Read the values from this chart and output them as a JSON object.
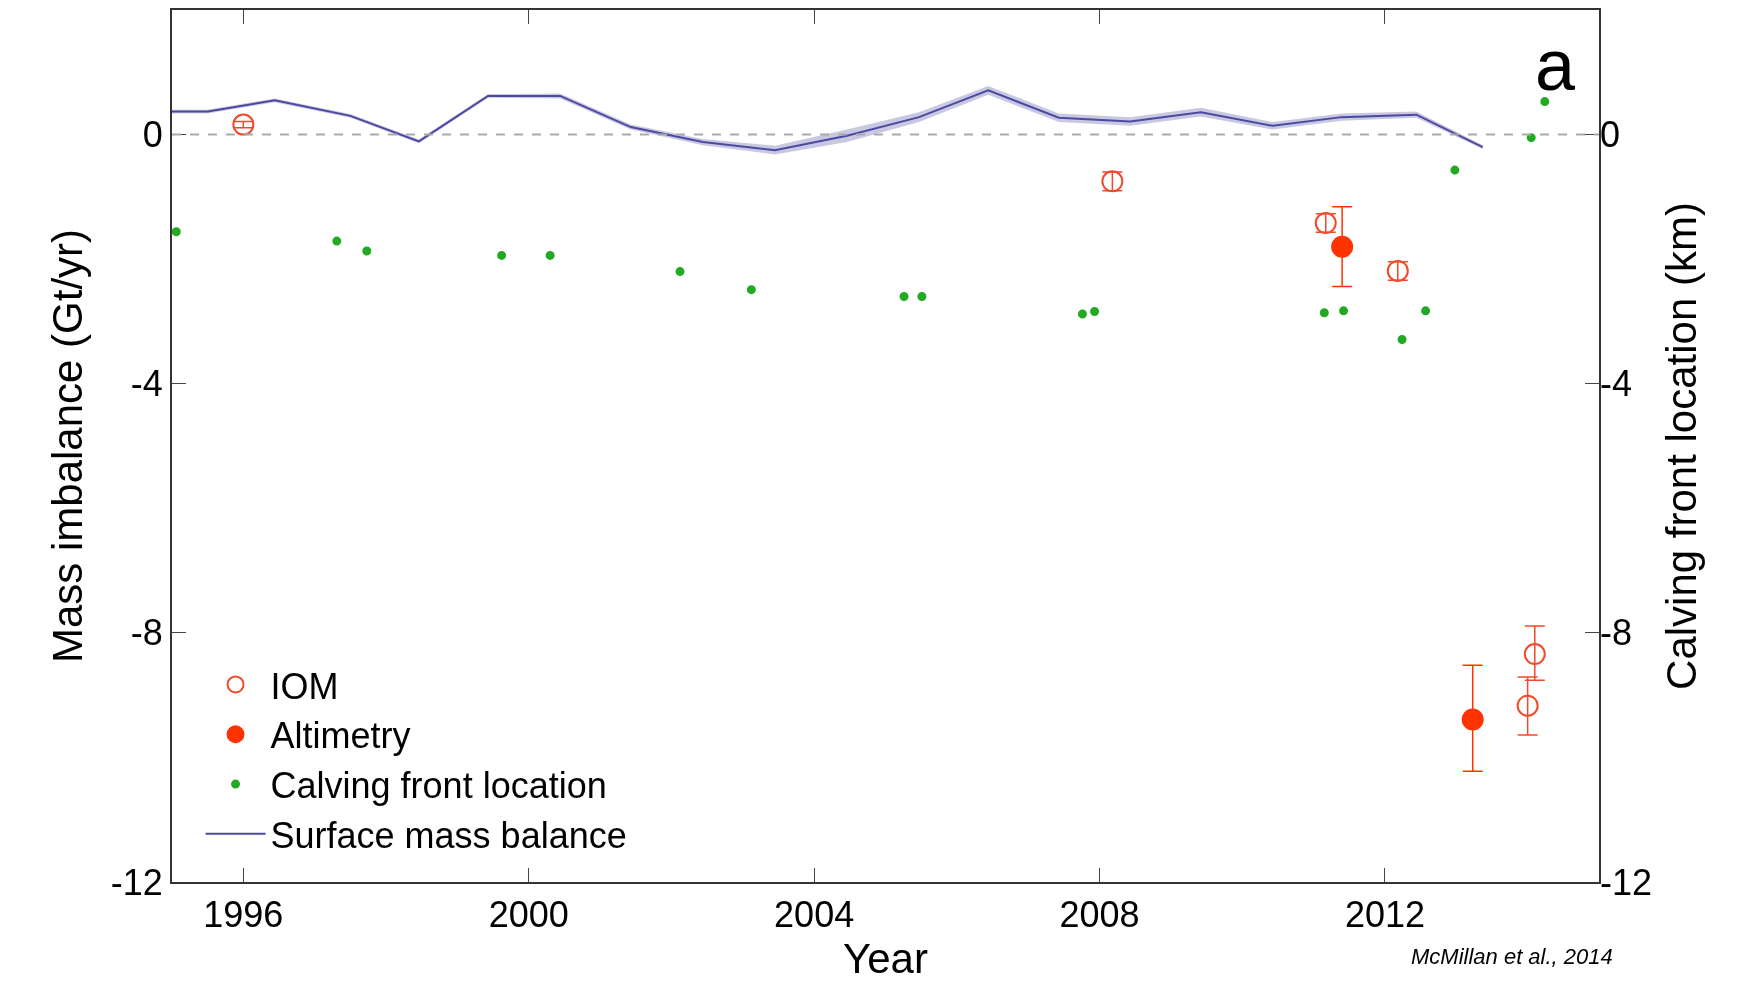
{
  "chart_data": {
    "type": "scatter",
    "xlabel": "Year",
    "ylabel": "Mass imbalance (Gt/yr)",
    "y2label": "Calving front location (km)",
    "xlim": [
      1995,
      2015
    ],
    "xticks": [
      1996,
      2000,
      2004,
      2008,
      2012
    ],
    "ylim": [
      -12,
      2
    ],
    "yticks": [
      -12,
      -8,
      -4,
      0
    ],
    "y2lim": [
      -12,
      2
    ],
    "y2ticks": [
      -12,
      -8,
      -4,
      0
    ],
    "legend": "bottom left",
    "ref_lines": [
      {
        "axis": "y",
        "value": 0,
        "color": "#aaaaaa",
        "line_style": "dashed"
      }
    ],
    "annotations": [
      "a",
      "McMillan et al., 2014"
    ],
    "series": [
      {
        "name": "IOM",
        "marker": "circle-open",
        "color": "#f04a28",
        "x": [
          1996.0,
          2008.18,
          2011.17,
          2012.18,
          2014.1,
          2014.0
        ],
        "values": [
          0.16,
          -0.75,
          -1.42,
          -2.19,
          -8.34,
          -9.17
        ],
        "errors": [
          0.05,
          0.15,
          0.15,
          0.15,
          [
            -8.76,
            -7.89
          ],
          [
            -9.64,
            -8.71
          ]
        ]
      },
      {
        "name": "Altimetry",
        "marker": "circle",
        "color": "#ff3300",
        "x": [
          2011.4,
          2013.23
        ],
        "values": [
          -1.8,
          -9.39
        ],
        "errors": [
          [
            -2.44,
            -1.16
          ],
          [
            -10.22,
            -8.52
          ]
        ]
      },
      {
        "name": "Calving front location",
        "marker": "circle",
        "axis": "y2",
        "color": "#22aa22",
        "x": [
          1995.06,
          1997.31,
          1997.73,
          1999.62,
          2000.3,
          2002.12,
          2003.12,
          2005.26,
          2005.51,
          2007.76,
          2007.93,
          2011.15,
          2011.42,
          2012.24,
          2012.57,
          2012.98,
          2014.05,
          2014.24
        ],
        "values": [
          -1.56,
          -1.71,
          -1.87,
          -1.94,
          -1.94,
          -2.2,
          -2.49,
          -2.6,
          -2.6,
          -2.88,
          -2.84,
          -2.86,
          -2.83,
          -3.29,
          -2.83,
          -0.57,
          -0.05,
          0.53
        ]
      },
      {
        "name": "Surface mass balance",
        "type": "line",
        "marker": "none",
        "line_style": "solid",
        "color": "#4b4aa0",
        "x": [
          1995.0,
          1995.5,
          1996.44,
          1997.5,
          1998.46,
          1999.43,
          2000.44,
          2001.43,
          2002.44,
          2003.45,
          2004.46,
          2005.47,
          2006.44,
          2007.43,
          2008.43,
          2009.42,
          2010.43,
          2011.39,
          2012.44,
          2013.37
        ],
        "values": [
          0.37,
          0.37,
          0.55,
          0.3,
          -0.11,
          0.62,
          0.62,
          0.12,
          -0.12,
          -0.25,
          -0.02,
          0.28,
          0.71,
          0.27,
          0.21,
          0.36,
          0.14,
          0.28,
          0.32,
          -0.2
        ],
        "lower": [
          0.34,
          0.34,
          0.52,
          0.27,
          -0.14,
          0.59,
          0.58,
          0.08,
          -0.17,
          -0.32,
          -0.12,
          0.2,
          0.64,
          0.2,
          0.14,
          0.29,
          0.08,
          0.22,
          0.27,
          -0.23
        ],
        "upper": [
          0.4,
          0.4,
          0.58,
          0.33,
          -0.08,
          0.65,
          0.66,
          0.16,
          -0.07,
          -0.18,
          0.08,
          0.36,
          0.78,
          0.34,
          0.28,
          0.43,
          0.2,
          0.34,
          0.37,
          -0.17
        ]
      }
    ]
  }
}
